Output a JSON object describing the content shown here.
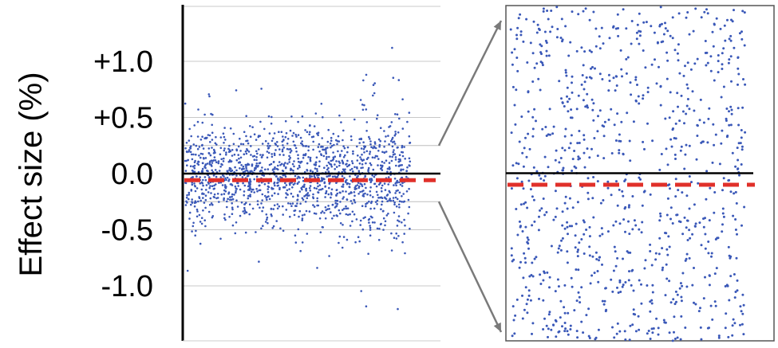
{
  "chart_data": [
    {
      "type": "scatter",
      "panel": "main",
      "title": "",
      "xlabel": "",
      "ylabel": "Effect size (%)",
      "ylim": [
        -1.45,
        1.48
      ],
      "yticks": [
        1.0,
        0.5,
        0.0,
        -0.5,
        -1.0
      ],
      "ytick_labels": [
        "+1.0",
        "+0.5",
        "0.0",
        "-0.5",
        "-1.0"
      ],
      "grid": true,
      "zero_line": 0.0,
      "mean_line": -0.03,
      "n_points": 1500,
      "point_spread_sd": 0.24,
      "zoom_range": [
        -0.25,
        0.25
      ],
      "point_color": "#3a58b8",
      "mean_line_color": "#e0302a"
    },
    {
      "type": "scatter",
      "panel": "zoom-inset",
      "title": "",
      "ylim": [
        -0.25,
        0.25
      ],
      "zero_line": 0.0,
      "mean_line": -0.03,
      "n_points": 950,
      "point_color": "#3a58b8",
      "mean_line_color": "#e0302a"
    }
  ]
}
